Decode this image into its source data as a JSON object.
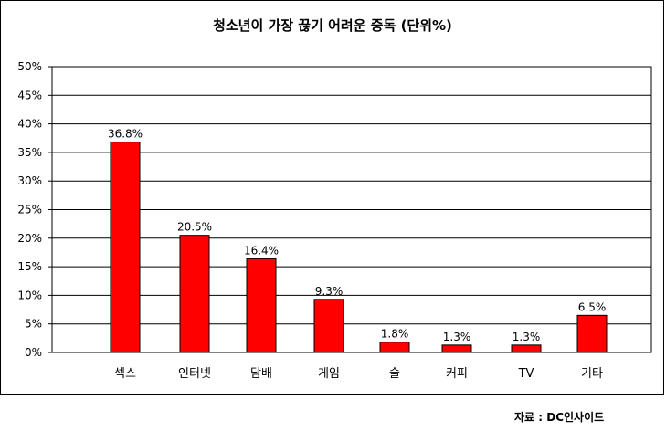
{
  "chart_data": {
    "type": "bar",
    "title": "청소년이 가장 끊기 어려운 중독 (단위%)",
    "categories": [
      "섹스",
      "인터넷",
      "담배",
      "게임",
      "술",
      "커피",
      "TV",
      "기타"
    ],
    "values": [
      36.8,
      20.5,
      16.4,
      9.3,
      1.8,
      1.3,
      1.3,
      6.5
    ],
    "data_labels": [
      "36.8%",
      "20.5%",
      "16.4%",
      "9.3%",
      "1.8%",
      "1.3%",
      "1.3%",
      "6.5%"
    ],
    "ylim": [
      0,
      50
    ],
    "yticks": [
      "0%",
      "5%",
      "10%",
      "15%",
      "20%",
      "25%",
      "30%",
      "35%",
      "40%",
      "45%",
      "50%"
    ],
    "grid": true,
    "bar_color": "#ff0000",
    "source": "자료 : DC인사이드"
  }
}
